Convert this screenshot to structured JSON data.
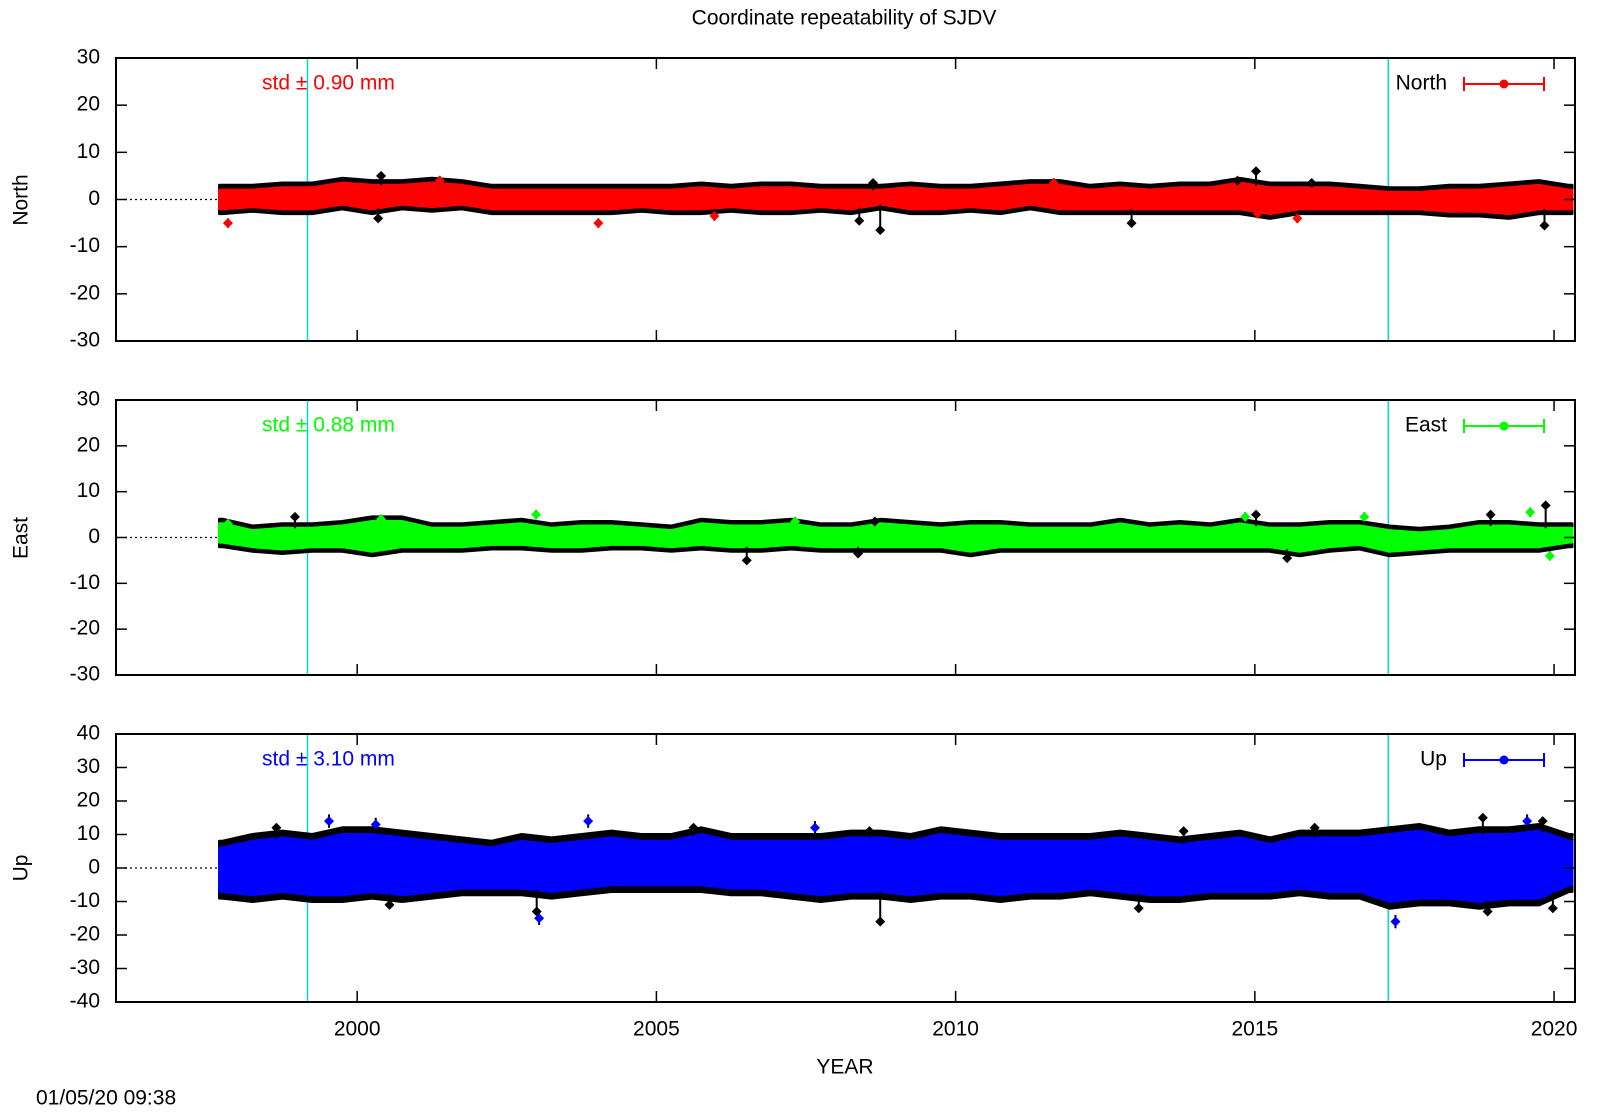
{
  "chart_data": {
    "type": "scatter",
    "title": "Coordinate repeatability of SJDV",
    "xlabel": "YEAR",
    "xlim": [
      1995.97,
      2020.35
    ],
    "xticks": [
      2000,
      2005,
      2010,
      2015,
      2020
    ],
    "vertical_lines": [
      1999.17,
      2017.23
    ],
    "data_range": [
      1997.7,
      2020.3
    ],
    "grid": false,
    "legend_position": "top-right",
    "colors": {
      "vertical_line": "#00dcdc",
      "error_bar": "#000000"
    },
    "band_x": [
      1997.75,
      1998.25,
      1998.75,
      1999.25,
      1999.75,
      2000.25,
      2000.75,
      2001.25,
      2001.75,
      2002.25,
      2002.75,
      2003.25,
      2003.75,
      2004.25,
      2004.75,
      2005.25,
      2005.75,
      2006.25,
      2006.75,
      2007.25,
      2007.75,
      2008.25,
      2008.75,
      2009.25,
      2009.75,
      2010.25,
      2010.75,
      2011.25,
      2011.75,
      2012.25,
      2012.75,
      2013.25,
      2013.75,
      2014.25,
      2014.75,
      2015.25,
      2015.75,
      2016.25,
      2016.75,
      2017.25,
      2017.75,
      2018.25,
      2018.75,
      2019.25,
      2019.75,
      2020.25
    ],
    "panels": [
      {
        "ylabel": "North",
        "legend": "North",
        "std_label": "std ± 0.90 mm",
        "color": "#ff0000",
        "ylim": [
          -30,
          30
        ],
        "yticks": [
          -30,
          -20,
          -10,
          0,
          10,
          20,
          30
        ],
        "error_bar_mm": 1.0,
        "lo": [
          -2,
          -1.5,
          -2,
          -2,
          -1,
          -2,
          -1,
          -1.5,
          -1,
          -2,
          -2,
          -2,
          -2,
          -2,
          -1.5,
          -2,
          -2,
          -1.5,
          -2,
          -2,
          -1.5,
          -2,
          -1,
          -2,
          -2,
          -1.5,
          -2,
          -1,
          -2,
          -2,
          -2,
          -2,
          -2,
          -2,
          -2,
          -3,
          -2,
          -2,
          -2,
          -2,
          -2,
          -2.5,
          -2.5,
          -3,
          -2,
          -2
        ],
        "hi": [
          2,
          2,
          2.5,
          2.5,
          3.5,
          3,
          3,
          3.5,
          3,
          2,
          2,
          2,
          2,
          2,
          2,
          2,
          2.5,
          2,
          2.5,
          2.5,
          2,
          2,
          2,
          2.5,
          2,
          2,
          2.5,
          3,
          3,
          2,
          2.5,
          2,
          2.5,
          2.5,
          3.5,
          2.5,
          2.5,
          2.5,
          2,
          1.5,
          1.5,
          2,
          2,
          2.5,
          3,
          2
        ],
        "points": [
          [
            1997.84,
            -5
          ],
          [
            2001.38,
            4
          ],
          [
            2004.03,
            -5
          ],
          [
            2005.97,
            -3.5
          ],
          [
            2011.64,
            3.5
          ],
          [
            2015.05,
            -3
          ],
          [
            2015.71,
            -4
          ]
        ],
        "error_ends": [
          [
            2000.35,
            -4
          ],
          [
            2000.4,
            5
          ],
          [
            2008.39,
            -4.5
          ],
          [
            2008.62,
            3.5
          ],
          [
            2008.74,
            -6.5
          ],
          [
            2012.94,
            -5
          ],
          [
            2014.71,
            4
          ],
          [
            2015.02,
            6
          ],
          [
            2015.95,
            3.5
          ],
          [
            2019.84,
            -5.5
          ]
        ]
      },
      {
        "ylabel": "East",
        "legend": "East",
        "std_label": "std ± 0.88 mm",
        "color": "#00ff00",
        "ylim": [
          -30,
          30
        ],
        "yticks": [
          -30,
          -20,
          -10,
          0,
          10,
          20,
          30
        ],
        "error_bar_mm": 1.0,
        "lo": [
          -1,
          -2,
          -2.5,
          -2,
          -2,
          -3,
          -2,
          -2,
          -2,
          -1.5,
          -1.5,
          -2,
          -2,
          -1.5,
          -1.5,
          -2,
          -1.5,
          -2,
          -2,
          -1.5,
          -2,
          -2,
          -2,
          -2,
          -2,
          -3,
          -2,
          -2,
          -2,
          -2,
          -2,
          -2,
          -2,
          -2,
          -2,
          -2,
          -3,
          -2,
          -1.5,
          -3,
          -2.5,
          -2,
          -2,
          -2,
          -2,
          -1
        ],
        "hi": [
          3,
          1.5,
          2,
          2,
          2.5,
          3.5,
          3.5,
          2,
          2,
          2.5,
          3,
          2,
          2.5,
          2.5,
          2,
          1.5,
          3,
          2.5,
          2.5,
          3,
          2,
          2,
          3,
          2.5,
          2,
          2.5,
          2.5,
          2,
          2,
          2,
          3,
          2,
          2.5,
          2,
          3,
          2,
          2,
          2.5,
          2.5,
          1.5,
          1,
          1.5,
          2.5,
          2.5,
          2,
          2
        ],
        "points": [
          [
            1997.84,
            3
          ],
          [
            2000.4,
            4
          ],
          [
            2002.99,
            5
          ],
          [
            2007.32,
            3.5
          ],
          [
            2014.84,
            4.5
          ],
          [
            2016.83,
            4.5
          ],
          [
            2019.6,
            5.5
          ],
          [
            2019.93,
            -4
          ]
        ],
        "error_ends": [
          [
            1998.96,
            4.5
          ],
          [
            2006.51,
            -5
          ],
          [
            2008.37,
            -3.5
          ],
          [
            2008.65,
            3.5
          ],
          [
            2015.02,
            5
          ],
          [
            2015.54,
            -4.5
          ],
          [
            2018.94,
            5
          ],
          [
            2019.86,
            7
          ]
        ]
      },
      {
        "ylabel": "Up",
        "legend": "Up",
        "std_label": "std ± 3.10 mm",
        "color": "#0000ff",
        "ylim": [
          -40,
          40
        ],
        "yticks": [
          -40,
          -30,
          -20,
          -10,
          0,
          10,
          20,
          30,
          40
        ],
        "error_bar_mm": 2.0,
        "lo": [
          -7,
          -8,
          -7,
          -8,
          -8,
          -7,
          -8,
          -7,
          -6,
          -6,
          -6,
          -7,
          -6,
          -5,
          -5,
          -5,
          -5,
          -6,
          -6,
          -7,
          -8,
          -7,
          -7,
          -8,
          -7,
          -7,
          -8,
          -7,
          -7,
          -6,
          -7,
          -8,
          -8,
          -7,
          -7,
          -7,
          -6,
          -7,
          -7,
          -10,
          -9,
          -9,
          -10,
          -9,
          -9,
          -5
        ],
        "hi": [
          6,
          8,
          9,
          8,
          10,
          10,
          9,
          8,
          7,
          6,
          8,
          7,
          8,
          9,
          8,
          8,
          10,
          8,
          8,
          8,
          8,
          9,
          9,
          8,
          10,
          9,
          8,
          8,
          8,
          8,
          9,
          8,
          7,
          8,
          9,
          7,
          9,
          9,
          9,
          10,
          11,
          9,
          10,
          10,
          11,
          8
        ],
        "points": [
          [
            1999.53,
            14
          ],
          [
            2000.31,
            13
          ],
          [
            2003.04,
            -15
          ],
          [
            2003.86,
            14
          ],
          [
            2007.65,
            12
          ],
          [
            2017.35,
            -16
          ],
          [
            2019.55,
            14
          ]
        ],
        "error_ends": [
          [
            1998.65,
            12
          ],
          [
            2000.54,
            -11
          ],
          [
            2003.0,
            -13
          ],
          [
            2005.62,
            12
          ],
          [
            2008.56,
            11
          ],
          [
            2008.74,
            -16
          ],
          [
            2013.06,
            -12
          ],
          [
            2013.81,
            11
          ],
          [
            2016.0,
            12
          ],
          [
            2018.81,
            15
          ],
          [
            2018.89,
            -13
          ],
          [
            2019.81,
            14
          ],
          [
            2019.98,
            -12
          ]
        ]
      }
    ],
    "footer": "01/05/20 09:38"
  }
}
